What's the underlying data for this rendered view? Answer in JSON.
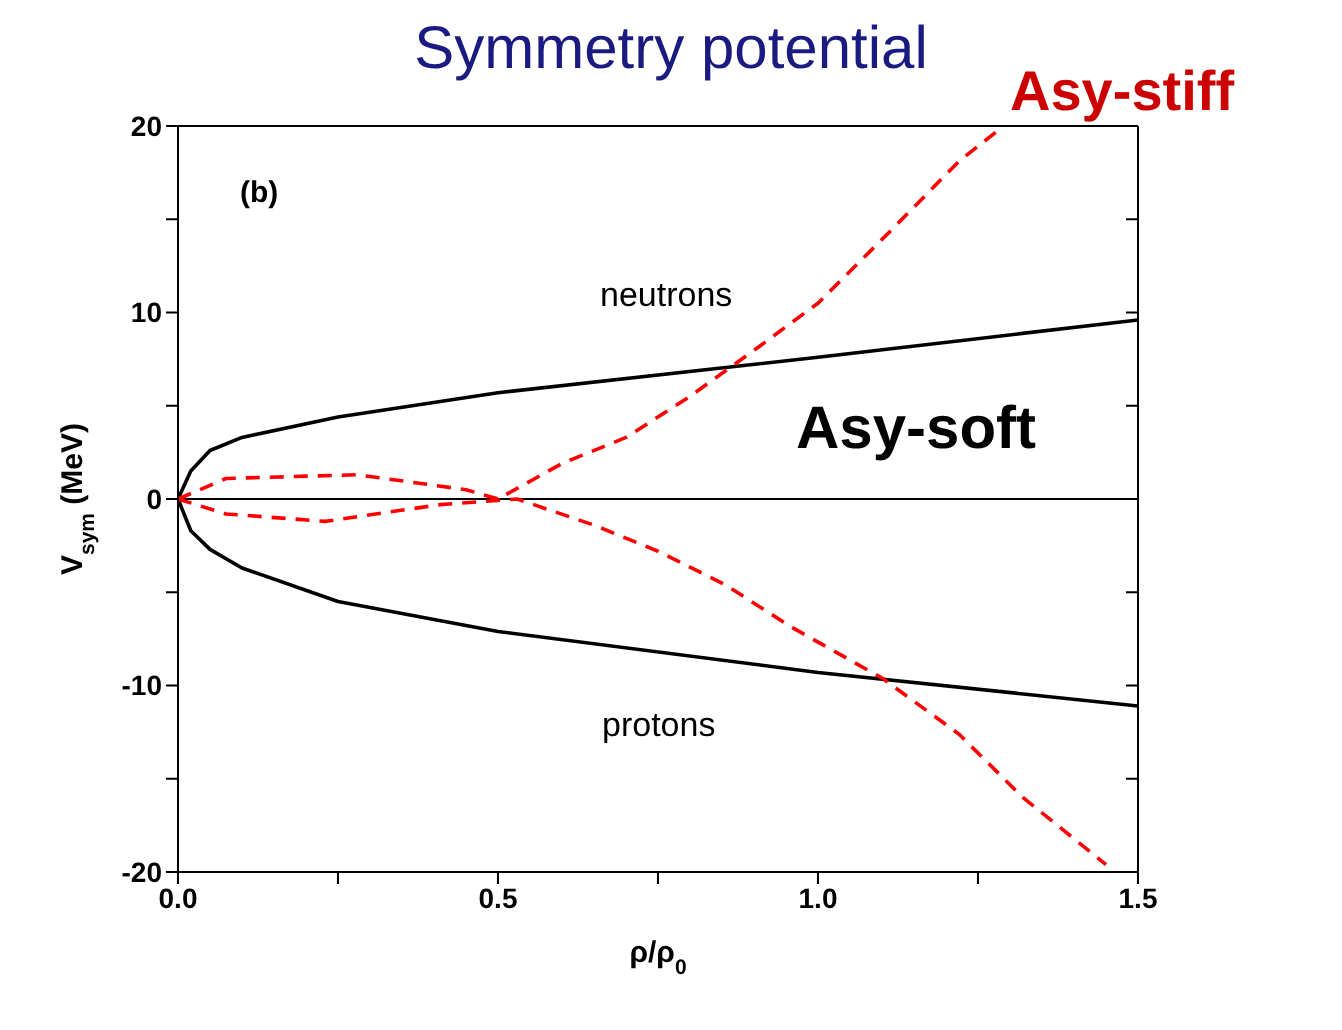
{
  "chart_data": {
    "type": "line",
    "title": "Symmetry potential",
    "xlabel": "ρ/ρ$_{0}$",
    "ylabel": "V$_{sym}$ (MeV)",
    "annotations": [
      "(b)",
      "neutrons",
      "protons",
      "Asy-stiff",
      "Asy-soft"
    ],
    "xlim": [
      0,
      1.5
    ],
    "ylim": [
      -20,
      20
    ],
    "xticks": [
      {
        "value": 0,
        "label": "0.0"
      },
      {
        "value": 0.25,
        "label": null
      },
      {
        "value": 0.5,
        "label": "0.5"
      },
      {
        "value": 0.75,
        "label": null
      },
      {
        "value": 1.0,
        "label": "1.0"
      },
      {
        "value": 1.25,
        "label": null
      },
      {
        "value": 1.5,
        "label": "1.5"
      }
    ],
    "yticks": [
      -20,
      {
        "value": -15,
        "label": null
      },
      -10,
      {
        "value": -5,
        "label": null
      },
      0,
      {
        "value": 5,
        "label": null
      },
      10,
      {
        "value": 15,
        "label": null
      },
      20
    ],
    "marker": "none",
    "ref_lines": [
      {
        "axis": "y",
        "value": 0,
        "color": "#000000"
      }
    ],
    "series": [
      {
        "color": "#000000",
        "line_style": "solid",
        "x": [
          0,
          0.02,
          0.05,
          0.1,
          0.25,
          0.5,
          1.0,
          1.5
        ],
        "values": [
          0,
          1.5,
          2.6,
          3.3,
          4.4,
          5.7,
          7.6,
          9.6
        ]
      },
      {
        "color": "#000000",
        "line_style": "solid",
        "x": [
          0,
          0.02,
          0.05,
          0.1,
          0.25,
          0.5,
          1.0,
          1.5
        ],
        "values": [
          0,
          -1.7,
          -2.7,
          -3.7,
          -5.5,
          -7.1,
          -9.3,
          -11.1
        ]
      },
      {
        "color": "#ff0000",
        "line_style": "dashed",
        "x": [
          0,
          0.075,
          0.28,
          0.45,
          0.5,
          0.6,
          0.7,
          0.8,
          0.905,
          1.0,
          1.117,
          1.22,
          1.29
        ],
        "values": [
          0,
          1.1,
          1.3,
          0.5,
          0,
          1.9,
          3.3,
          5.5,
          8.1,
          10.5,
          14.5,
          18.1,
          20
        ]
      },
      {
        "color": "#ff0000",
        "line_style": "dashed",
        "x": [
          0,
          0.075,
          0.23,
          0.41,
          0.53,
          0.65,
          0.75,
          0.855,
          0.96,
          1.1,
          1.22,
          1.32,
          1.45
        ],
        "values": [
          0,
          -0.8,
          -1.2,
          -0.3,
          0,
          -1.4,
          -2.8,
          -4.6,
          -6.9,
          -9.6,
          -12.6,
          -16,
          -19.6
        ]
      }
    ]
  }
}
